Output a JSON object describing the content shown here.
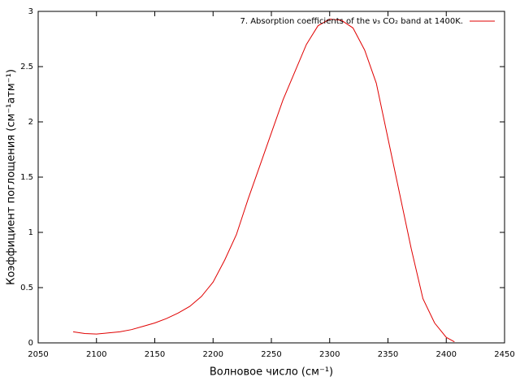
{
  "chart_data": {
    "type": "line",
    "xlabel": "Волновое число (см⁻¹)",
    "ylabel": "Коэффициент поглощения (см⁻¹атм⁻¹)",
    "x": [
      2080,
      2090,
      2100,
      2110,
      2120,
      2130,
      2140,
      2150,
      2160,
      2170,
      2180,
      2190,
      2200,
      2210,
      2220,
      2230,
      2240,
      2250,
      2260,
      2270,
      2280,
      2290,
      2300,
      2310,
      2320,
      2330,
      2340,
      2350,
      2360,
      2370,
      2380,
      2390,
      2400,
      2407
    ],
    "series": [
      {
        "name": "7. Absorption coefficients of the ν₃ CO₂ band at 1400K.",
        "color": "#e00000",
        "values": [
          0.1,
          0.085,
          0.08,
          0.09,
          0.1,
          0.12,
          0.15,
          0.18,
          0.22,
          0.27,
          0.33,
          0.42,
          0.55,
          0.75,
          0.98,
          1.3,
          1.6,
          1.9,
          2.2,
          2.45,
          2.7,
          2.87,
          2.93,
          2.92,
          2.85,
          2.65,
          2.35,
          1.85,
          1.35,
          0.85,
          0.4,
          0.18,
          0.05,
          0.01
        ]
      }
    ],
    "xlim": [
      2050,
      2450
    ],
    "xticks": [
      2050,
      2100,
      2150,
      2200,
      2250,
      2300,
      2350,
      2400,
      2450
    ],
    "ylim": [
      0,
      3
    ],
    "yticks": [
      0,
      0.5,
      1,
      1.5,
      2,
      2.5,
      3
    ],
    "legend": "top-right"
  }
}
